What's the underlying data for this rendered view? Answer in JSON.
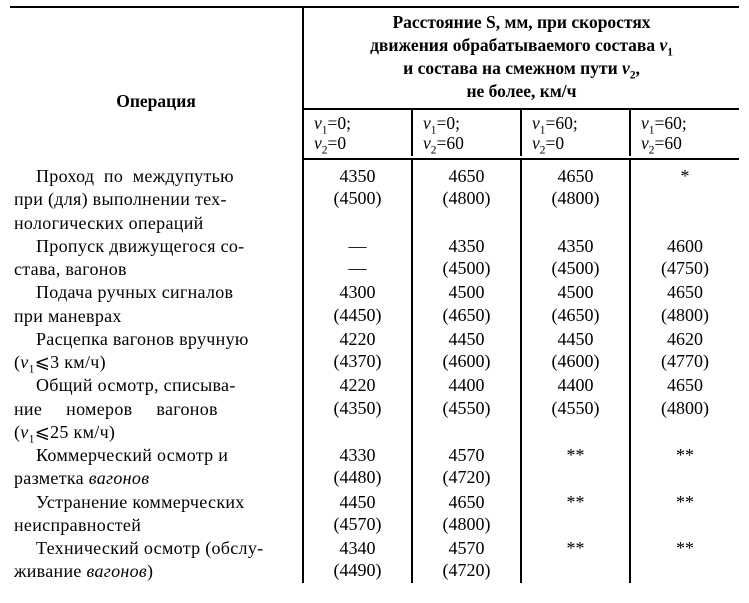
{
  "type": "table",
  "background_color": "#ffffff",
  "text_color": "#000000",
  "border_color": "#000000",
  "font_family": "Times New Roman",
  "base_fontsize": 18,
  "header": {
    "operation_label": "Операция",
    "top_header_line1": "Расстояние S, мм, при скоростях",
    "top_header_line2_html": "движения обрабатываемого состава <i>v</i><sub>1</sub>",
    "top_header_line3_html": "и состава на смежном пути <i>v</i><sub>2</sub>,",
    "top_header_line4": "не более, км/ч",
    "sub_headers": [
      {
        "line1_html": "<i>v</i><sub>1</sub>=0;",
        "line2_html": "<i>v</i><sub>2</sub>=0"
      },
      {
        "line1_html": "<i>v</i><sub>1</sub>=0;",
        "line2_html": "<i>v</i><sub>2</sub>=60"
      },
      {
        "line1_html": "<i>v</i><sub>1</sub>=60;",
        "line2_html": "<i>v</i><sub>2</sub>=0"
      },
      {
        "line1_html": "<i>v</i><sub>1</sub>=60;",
        "line2_html": "<i>v</i><sub>2</sub>=60"
      }
    ]
  },
  "rows": [
    {
      "desc_lines": [
        "Проход&nbsp;&nbsp;по&nbsp;&nbsp;междупутью",
        "при (для) выполнении тех-",
        "нологических операций"
      ],
      "v": [
        "4350",
        "4650",
        "4650",
        "*"
      ],
      "p": [
        "(4500)",
        "(4800)",
        "(4800)",
        ""
      ]
    },
    {
      "desc_lines": [
        "Пропуск движущегося со-",
        "става, вагонов"
      ],
      "v": [
        "—",
        "4350",
        "4350",
        "4600"
      ],
      "p": [
        "—",
        "(4500)",
        "(4500)",
        "(4750)"
      ]
    },
    {
      "desc_lines": [
        "Подача ручных сигналов",
        "при маневрах"
      ],
      "v": [
        "4300",
        "4500",
        "4500",
        "4650"
      ],
      "p": [
        "(4450)",
        "(4650)",
        "(4650)",
        "(4800)"
      ]
    },
    {
      "desc_lines": [
        "Расцепка вагонов вручную",
        "(<i>v</i><sub>1</sub>⩽3 км/ч)"
      ],
      "v": [
        "4220",
        "4450",
        "4450",
        "4620"
      ],
      "p": [
        "(4370)",
        "(4600)",
        "(4600)",
        "(4770)"
      ]
    },
    {
      "desc_lines": [
        "Общий осмотр, списыва-",
        "ние&nbsp;&nbsp;&nbsp;&nbsp;&nbsp;номеров&nbsp;&nbsp;&nbsp;&nbsp;&nbsp;вагонов",
        "(<i>v</i><sub>1</sub>⩽25 км/ч)"
      ],
      "v": [
        "4220",
        "4400",
        "4400",
        "4650"
      ],
      "p": [
        "(4350)",
        "(4550)",
        "(4550)",
        "(4800)"
      ]
    },
    {
      "desc_lines": [
        "Коммерческий осмотр и",
        "разметка <i>вагонов</i>"
      ],
      "v": [
        "4330",
        "4570",
        "**",
        "**"
      ],
      "p": [
        "(4480)",
        "(4720)",
        "",
        ""
      ]
    },
    {
      "desc_lines": [
        "Устранение коммерческих",
        "неисправностей"
      ],
      "v": [
        "4450",
        "4650",
        "**",
        "**"
      ],
      "p": [
        "(4570)",
        "(4800)",
        "",
        ""
      ]
    },
    {
      "desc_lines": [
        "Технический осмотр (обслу-",
        "живание <i>вагонов</i>)"
      ],
      "v": [
        "4340",
        "4570",
        "**",
        "**"
      ],
      "p": [
        "(4490)",
        "(4720)",
        "",
        ""
      ]
    }
  ]
}
